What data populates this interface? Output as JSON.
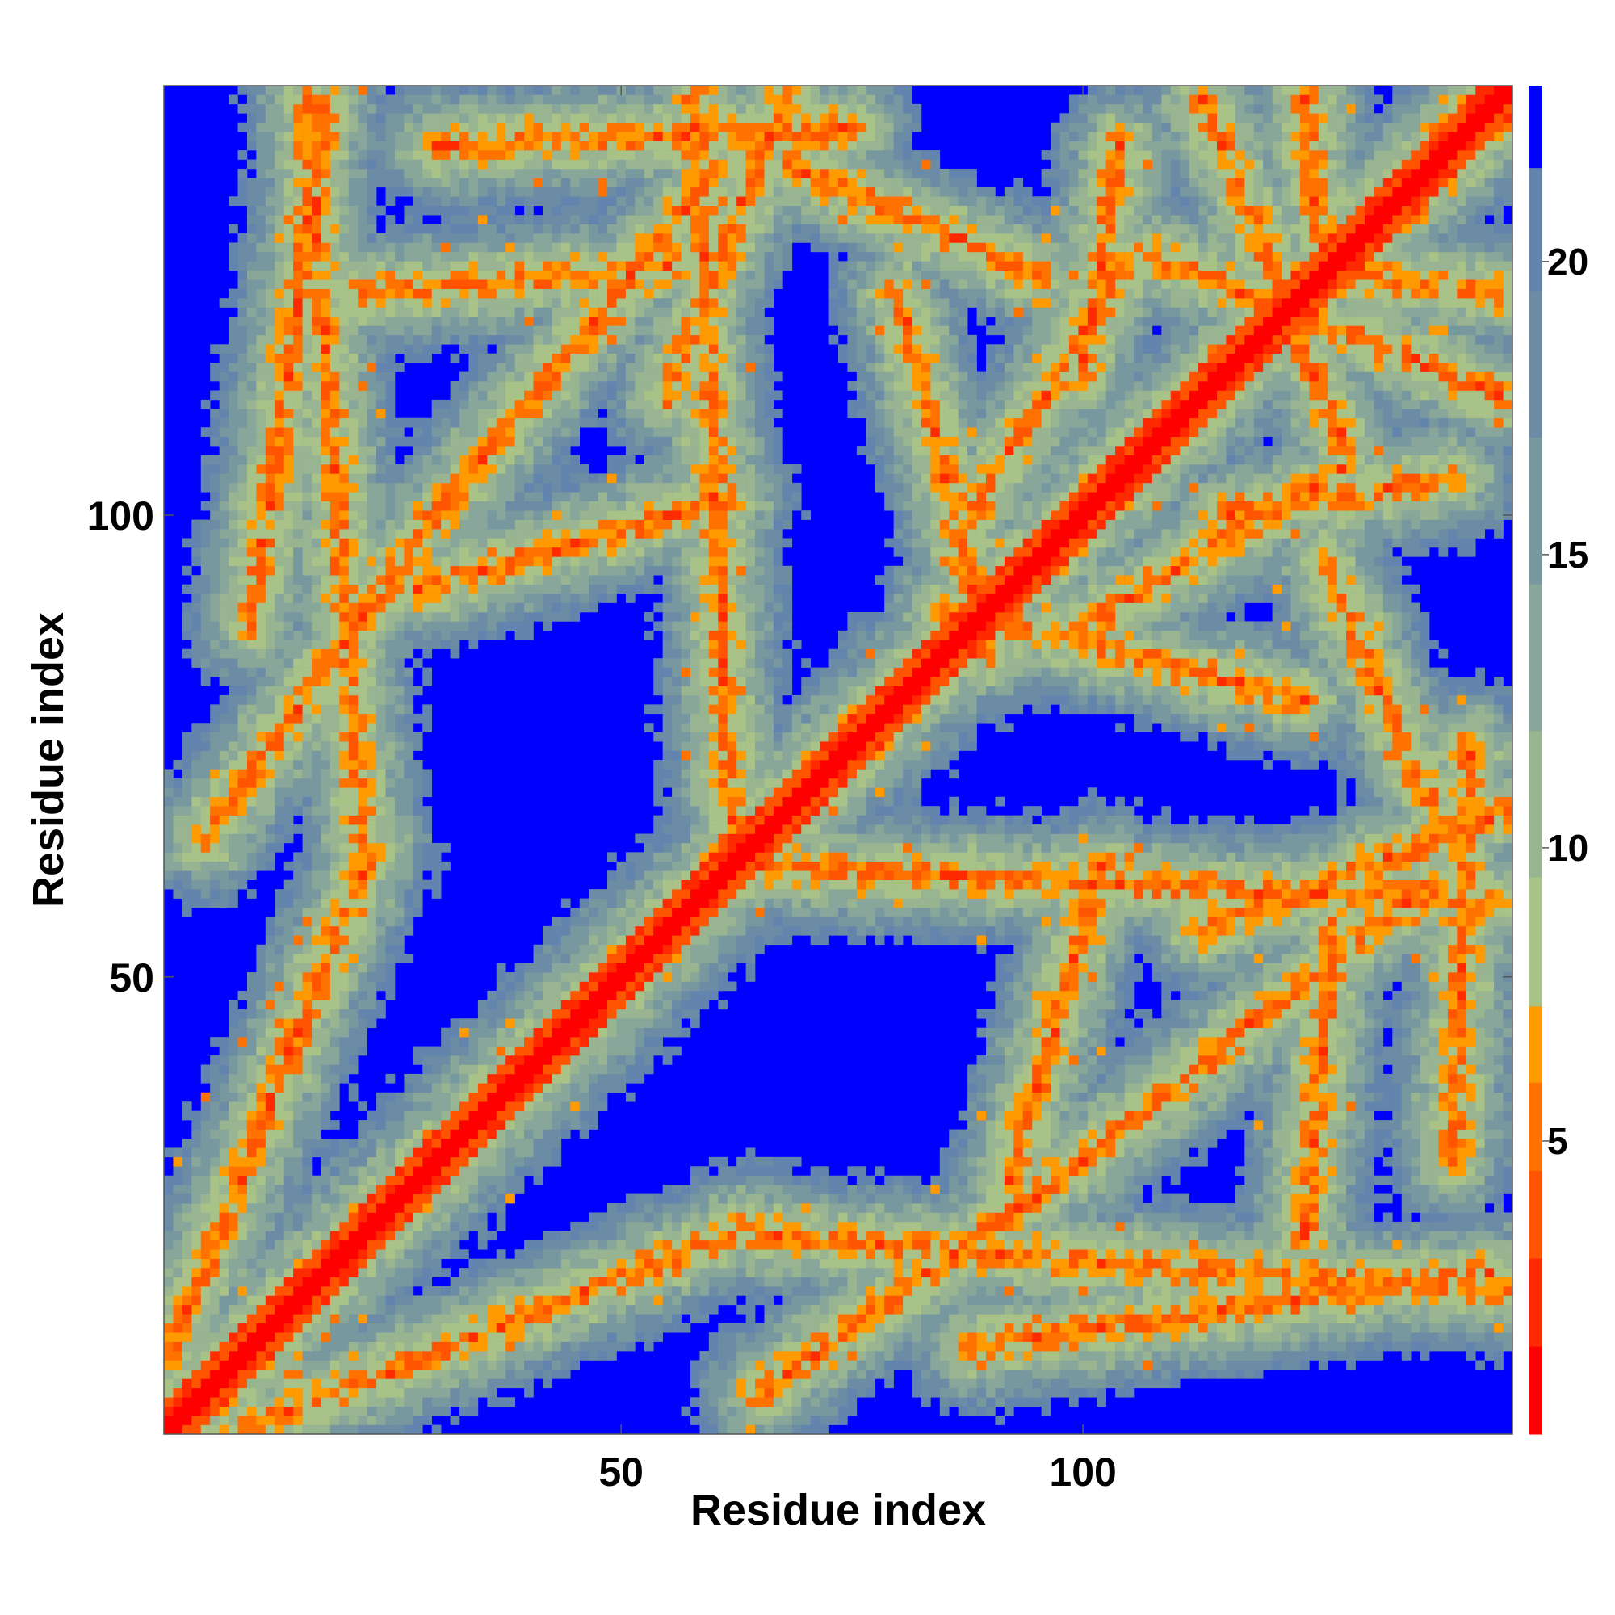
{
  "chart_data": {
    "type": "heatmap",
    "title": "",
    "xlabel": "Residue index",
    "ylabel": "Residue index",
    "xlim": [
      1,
      146
    ],
    "ylim": [
      1,
      146
    ],
    "x_ticks": [
      50,
      100
    ],
    "y_ticks": [
      50,
      100
    ],
    "x_tick_labels": [
      "50",
      "100"
    ],
    "y_tick_labels": [
      "50",
      "100"
    ],
    "colorbar": {
      "ticks": [
        5,
        10,
        15,
        20
      ],
      "tick_labels": [
        "5",
        "10",
        "15",
        "20"
      ],
      "range": [
        0,
        23
      ],
      "bands": [
        {
          "from": 0,
          "to": 1.5,
          "color": "#ff0000"
        },
        {
          "from": 1.5,
          "to": 3,
          "color": "#ff2a00"
        },
        {
          "from": 3,
          "to": 4.5,
          "color": "#ff5500"
        },
        {
          "from": 4.5,
          "to": 6,
          "color": "#ff7200"
        },
        {
          "from": 6,
          "to": 7.3,
          "color": "#ff9a00"
        },
        {
          "from": 7.3,
          "to": 9.5,
          "color": "#a8c288"
        },
        {
          "from": 9.5,
          "to": 12,
          "color": "#98b490"
        },
        {
          "from": 12,
          "to": 14.5,
          "color": "#88a69a"
        },
        {
          "from": 14.5,
          "to": 17,
          "color": "#78989f"
        },
        {
          "from": 17,
          "to": 19.5,
          "color": "#6c8ca6"
        },
        {
          "from": 19.5,
          "to": 21.6,
          "color": "#6384ad"
        },
        {
          "from": 21.6,
          "to": 23,
          "color": "#0000ff"
        }
      ]
    },
    "grid": false,
    "legend": "right",
    "contact_features": [
      {
        "kind": "diagonal",
        "from": [
          1,
          1
        ],
        "to": [
          146,
          146
        ]
      },
      {
        "kind": "band",
        "from": [
          9,
          1
        ],
        "to": [
          64,
          23
        ]
      },
      {
        "kind": "band",
        "from": [
          5,
          65
        ],
        "to": [
          30,
          100
        ]
      },
      {
        "kind": "band",
        "from": [
          30,
          100
        ],
        "to": [
          60,
          137
        ]
      },
      {
        "kind": "band",
        "from": [
          10,
          88
        ],
        "to": [
          18,
          144
        ]
      },
      {
        "kind": "band",
        "from": [
          55,
          113
        ],
        "to": [
          68,
          146
        ]
      },
      {
        "kind": "band",
        "from": [
          64,
          62
        ],
        "to": [
          146,
          58
        ]
      },
      {
        "kind": "band",
        "from": [
          65,
          22
        ],
        "to": [
          145,
          16
        ]
      },
      {
        "kind": "band",
        "from": [
          85,
          90
        ],
        "to": [
          124,
          80
        ]
      },
      {
        "kind": "band",
        "from": [
          128,
          126
        ],
        "to": [
          145,
          124
        ]
      },
      {
        "kind": "band",
        "from": [
          133,
          135
        ],
        "to": [
          144,
          146
        ]
      },
      {
        "kind": "band",
        "from": [
          108,
          128
        ],
        "to": [
          145,
          113
        ]
      },
      {
        "kind": "band",
        "from": [
          68,
          138
        ],
        "to": [
          95,
          126
        ]
      },
      {
        "kind": "band",
        "from": [
          92,
          28
        ],
        "to": [
          102,
          62
        ]
      },
      {
        "kind": "band",
        "from": [
          124,
          22
        ],
        "to": [
          127,
          55
        ]
      },
      {
        "kind": "band",
        "from": [
          140,
          30
        ],
        "to": [
          142,
          75
        ]
      },
      {
        "kind": "band",
        "from": [
          115,
          100
        ],
        "to": [
          140,
          104
        ]
      },
      {
        "kind": "band",
        "from": [
          88,
          100
        ],
        "to": [
          105,
          128
        ]
      }
    ]
  }
}
